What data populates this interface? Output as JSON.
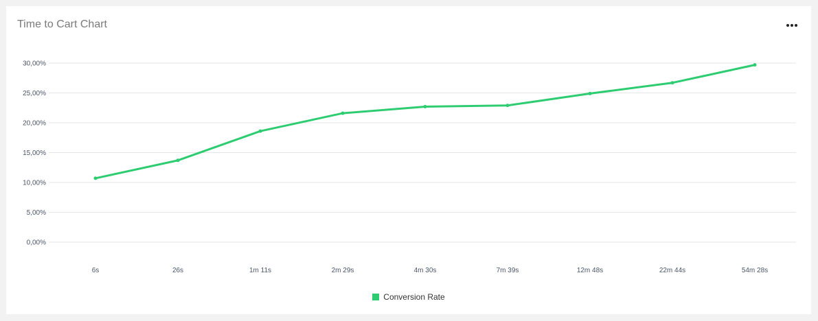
{
  "card": {
    "title": "Time to Cart Chart",
    "menu_icon": "more-horizontal-icon"
  },
  "colors": {
    "series": "#2ecc71",
    "grid": "#e6e6e6",
    "tick_text": "#4a5566",
    "title_text": "#7a7a7a"
  },
  "chart_data": {
    "type": "line",
    "title": "Time to Cart Chart",
    "xlabel": "",
    "ylabel": "",
    "categories": [
      "6s",
      "26s",
      "1m 11s",
      "2m 29s",
      "4m 30s",
      "7m 39s",
      "12m 48s",
      "22m 44s",
      "54m 28s"
    ],
    "y_ticks": [
      "0,00%",
      "5,00%",
      "10,00%",
      "15,00%",
      "20,00%",
      "25,00%",
      "30,00%"
    ],
    "y_tick_values": [
      0,
      5,
      10,
      15,
      20,
      25,
      30
    ],
    "ylim": [
      0,
      30
    ],
    "grid": true,
    "legend_position": "bottom-center",
    "series": [
      {
        "name": "Conversion Rate",
        "color": "#2ecc71",
        "values": [
          10.7,
          13.7,
          18.6,
          21.6,
          22.7,
          22.9,
          24.9,
          26.7,
          29.7
        ]
      }
    ]
  }
}
